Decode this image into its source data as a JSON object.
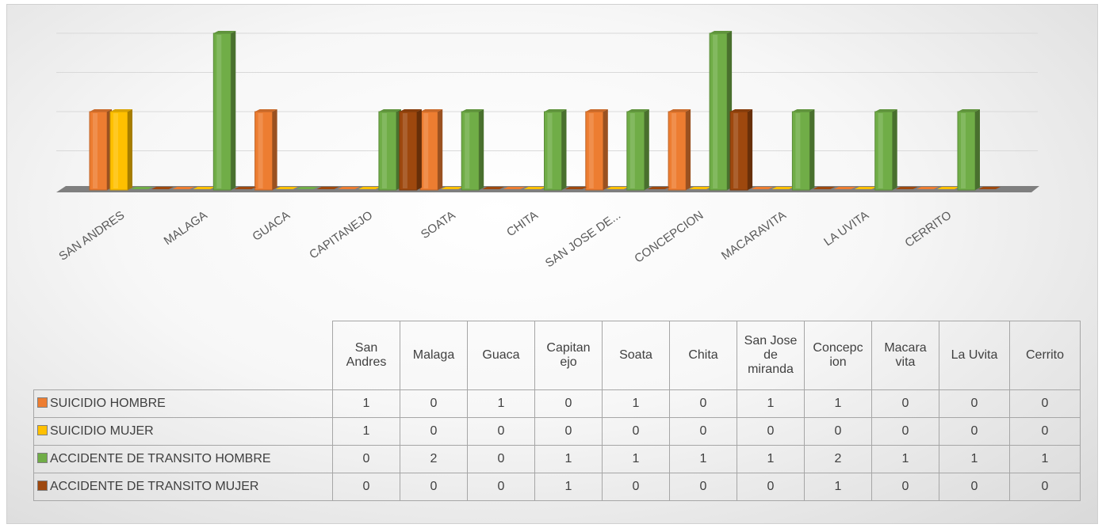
{
  "chart_data": {
    "type": "bar",
    "title": "",
    "xlabel": "",
    "ylabel": "",
    "ylim": [
      0,
      2
    ],
    "grid": true,
    "axis_categories": [
      "SAN ANDRES",
      "MALAGA",
      "GUACA",
      "CAPITANEJO",
      "SOATA",
      "CHITA",
      "SAN JOSE DE...",
      "CONCEPCION",
      "MACARAVITA",
      "LA UVITA",
      "CERRITO"
    ],
    "categories": [
      "San Andres",
      "Malaga",
      "Guaca",
      "Capitanejo",
      "Soata",
      "Chita",
      "San Jose de miranda",
      "Concepcion",
      "Macaravita",
      "La Uvita",
      "Cerrito"
    ],
    "table_headers": [
      "San Andres",
      "Malaga",
      "Guaca",
      "Capitan ejo",
      "Soata",
      "Chita",
      "San Jose de miranda",
      "Concepc ion",
      "Macara vita",
      "La Uvita",
      "Cerrito"
    ],
    "series": [
      {
        "name": "SUICIDIO HOMBRE",
        "color": "#ED7D31",
        "values": [
          1,
          0,
          1,
          0,
          1,
          0,
          1,
          1,
          0,
          0,
          0
        ]
      },
      {
        "name": "SUICIDIO MUJER",
        "color": "#FFC000",
        "values": [
          1,
          0,
          0,
          0,
          0,
          0,
          0,
          0,
          0,
          0,
          0
        ]
      },
      {
        "name": "ACCIDENTE DE TRANSITO HOMBRE",
        "color": "#70AD47",
        "values": [
          0,
          2,
          0,
          1,
          1,
          1,
          1,
          2,
          1,
          1,
          1
        ]
      },
      {
        "name": "ACCIDENTE DE TRANSITO MUJER",
        "color": "#9E480E",
        "values": [
          0,
          0,
          0,
          1,
          0,
          0,
          0,
          1,
          0,
          0,
          0
        ]
      }
    ]
  }
}
